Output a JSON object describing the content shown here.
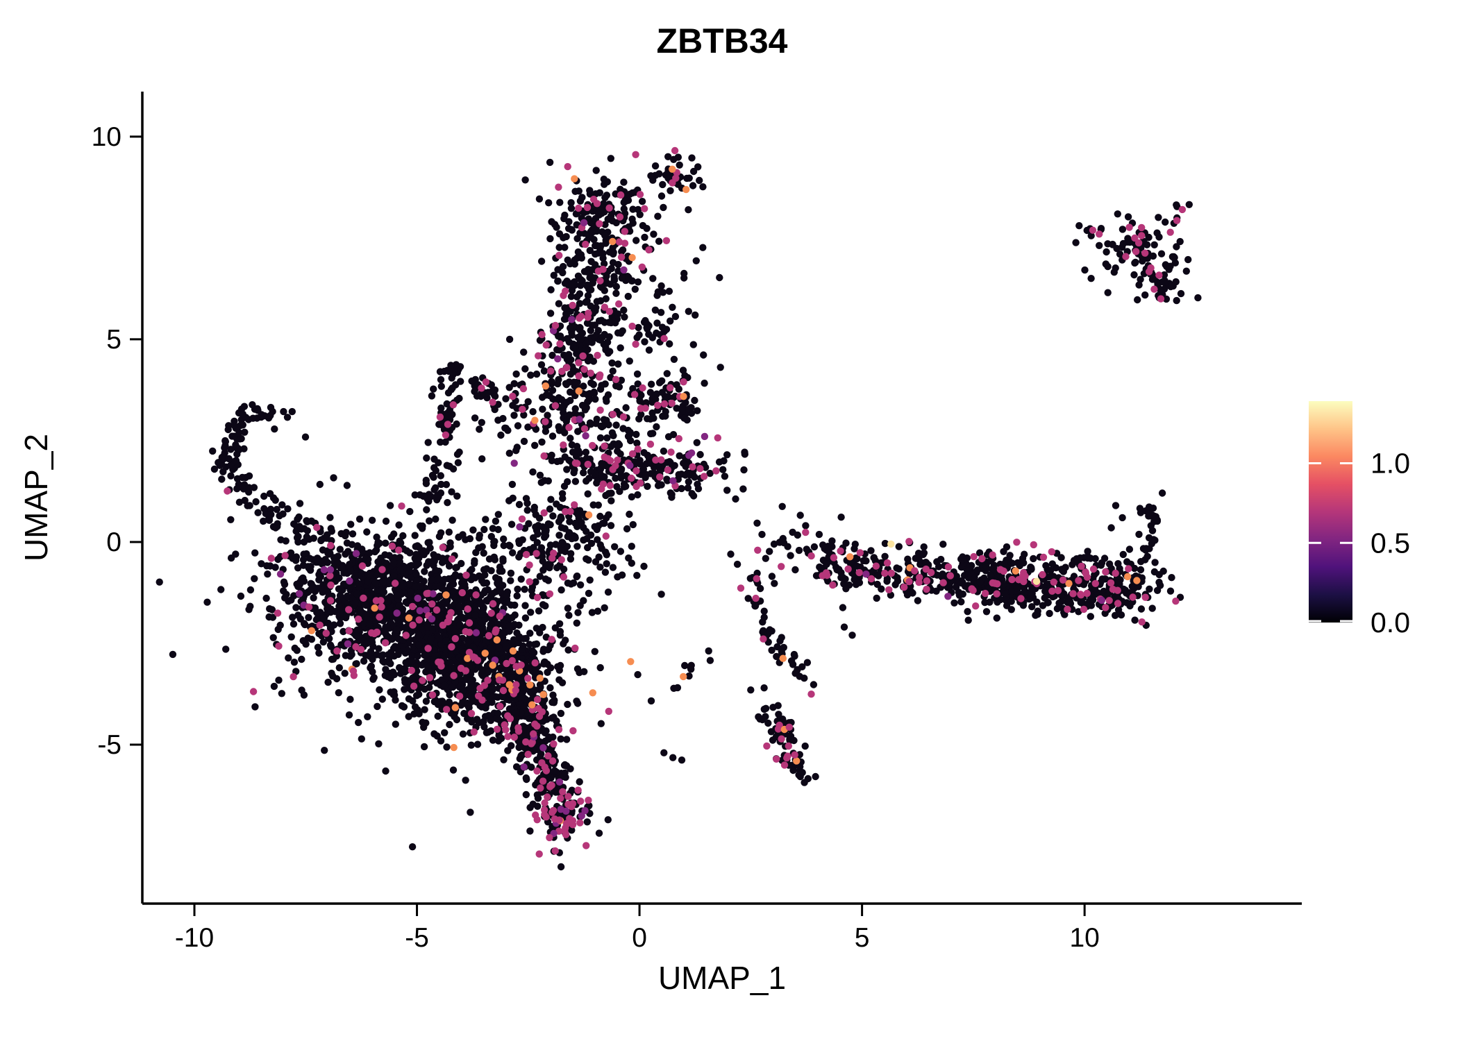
{
  "title": "ZBTB34",
  "axes": {
    "x_label": "UMAP_1",
    "y_label": "UMAP_2",
    "x_tick_values": [
      -10,
      -5,
      0,
      5,
      10
    ],
    "x_tick_labels": [
      "-10",
      "-5",
      "0",
      "5",
      "10"
    ],
    "y_tick_values": [
      10,
      5,
      0,
      -5
    ],
    "y_tick_labels": [
      "10",
      "5",
      "0",
      "-5"
    ],
    "x_range": [
      -11.17,
      14.88
    ],
    "y_range": [
      -8.92,
      11.11
    ]
  },
  "legend": {
    "tick_values": [
      1.0,
      0.5,
      0.0
    ],
    "tick_labels": [
      "1.0",
      "0.5",
      "0.0"
    ],
    "vmin": 0.0,
    "vmax": 1.39,
    "gradient_bottom_to_top": [
      "#000004",
      "#1c1044",
      "#4f127b",
      "#812581",
      "#b5367a",
      "#e55064",
      "#fb8861",
      "#fec488",
      "#fcfdbf"
    ]
  },
  "chart_data": {
    "type": "scatter",
    "title": "ZBTB34",
    "xlabel": "UMAP_1",
    "ylabel": "UMAP_2",
    "xlim": [
      -11.17,
      14.88
    ],
    "ylim": [
      -8.92,
      11.11
    ],
    "grid": false,
    "legend_position": "right",
    "point_radius_px": 5.2,
    "palette": {
      "black": "#0c0716",
      "magenta": "#b63679",
      "purple": "#822681",
      "orange": "#f68d51",
      "pale": "#fbe3a0"
    },
    "clusters": [
      {
        "name": "main-blob-core-a",
        "kind": "g",
        "n": 720,
        "c": [
          -5.2,
          -1.6
        ],
        "sd": [
          1.25,
          0.85
        ],
        "colors": {
          "m": 0.05,
          "p": 0.01,
          "o": 0.006
        }
      },
      {
        "name": "main-blob-core-b",
        "kind": "g",
        "n": 680,
        "c": [
          -4.0,
          -2.7
        ],
        "sd": [
          0.95,
          0.85
        ],
        "colors": {
          "m": 0.055,
          "p": 0.01,
          "o": 0.005
        }
      },
      {
        "name": "main-blob-left",
        "kind": "g",
        "n": 300,
        "c": [
          -6.5,
          -0.9
        ],
        "sd": [
          0.95,
          0.55
        ],
        "colors": {
          "m": 0.04,
          "p": 0.008,
          "o": 0.003
        }
      },
      {
        "name": "main-blob-lower-right",
        "kind": "g",
        "n": 280,
        "c": [
          -3.1,
          -3.7
        ],
        "sd": [
          0.65,
          0.65
        ],
        "colors": {
          "m": 0.07,
          "p": 0.01,
          "o": 0.006
        }
      },
      {
        "name": "main-blob-halo",
        "kind": "g",
        "n": 320,
        "c": [
          -4.8,
          -2.0
        ],
        "sd": [
          2.0,
          1.5
        ],
        "colors": {
          "m": 0.05,
          "p": 0.008,
          "o": 0.004
        }
      },
      {
        "name": "blob-column-bridge",
        "kind": "g",
        "n": 190,
        "c": [
          -1.7,
          0.2
        ],
        "sd": [
          0.75,
          0.75
        ],
        "colors": {
          "m": 0.06,
          "p": 0.01,
          "o": 0.005
        }
      },
      {
        "name": "column-top-clump-right",
        "kind": "g",
        "n": 40,
        "c": [
          0.75,
          8.95
        ],
        "sd": [
          0.28,
          0.3
        ],
        "colors": {
          "m": 0.06,
          "o": 0.025
        }
      },
      {
        "name": "column-top-clump-main",
        "kind": "g",
        "n": 120,
        "c": [
          -0.85,
          8.2
        ],
        "sd": [
          0.5,
          0.45
        ],
        "colors": {
          "m": 0.07,
          "o": 0.008
        }
      },
      {
        "name": "column-upper",
        "kind": "l",
        "n": 210,
        "pts": [
          [
            -1.0,
            7.5
          ],
          [
            -1.5,
            4.7
          ]
        ],
        "j": 0.5,
        "colors": {
          "m": 0.09,
          "p": 0.012,
          "o": 0.006
        }
      },
      {
        "name": "column-lower",
        "kind": "l",
        "n": 190,
        "pts": [
          [
            -1.55,
            4.5
          ],
          [
            -1.0,
            2.3
          ]
        ],
        "j": 0.55,
        "colors": {
          "m": 0.1,
          "p": 0.012,
          "o": 0.006
        }
      },
      {
        "name": "column-halo",
        "kind": "g",
        "n": 110,
        "c": [
          -0.6,
          5.0
        ],
        "sd": [
          1.1,
          2.0
        ],
        "colors": {
          "m": 0.07,
          "o": 0.009
        }
      },
      {
        "name": "clump-right-of-column-upper",
        "kind": "g",
        "n": 30,
        "c": [
          0.3,
          5.2
        ],
        "sd": [
          0.3,
          0.3
        ],
        "colors": {
          "m": 0.07
        }
      },
      {
        "name": "clump-right-of-column-mid",
        "kind": "g",
        "n": 70,
        "c": [
          0.6,
          3.55
        ],
        "sd": [
          0.45,
          0.4
        ],
        "colors": {
          "m": 0.09,
          "o": 0.01
        }
      },
      {
        "name": "dense-band-below-column",
        "kind": "g",
        "n": 210,
        "c": [
          0.0,
          1.8
        ],
        "sd": [
          0.95,
          0.33
        ],
        "colors": {
          "m": 0.12,
          "p": 0.01,
          "o": 0.005
        }
      },
      {
        "name": "scatter-above-column-right",
        "kind": "g",
        "n": 25,
        "c": [
          0.1,
          6.9
        ],
        "sd": [
          0.5,
          0.6
        ],
        "colors": {
          "m": 0.05,
          "o": 0.02
        }
      },
      {
        "name": "left-hook-arc",
        "kind": "l",
        "n": 85,
        "pts": [
          [
            -8.1,
            3.2
          ],
          [
            -8.75,
            3.1
          ],
          [
            -9.15,
            2.5
          ],
          [
            -9.3,
            1.8
          ],
          [
            -9.05,
            1.3
          ]
        ],
        "j": 0.18,
        "colors": {
          "m": 0.04
        }
      },
      {
        "name": "left-hook-chain",
        "kind": "l",
        "n": 55,
        "pts": [
          [
            -8.9,
            1.1
          ],
          [
            -8.1,
            0.6
          ],
          [
            -7.3,
            0.15
          ]
        ],
        "j": 0.22,
        "colors": {
          "m": 0.05
        }
      },
      {
        "name": "check-cluster-vertical",
        "kind": "l",
        "n": 55,
        "pts": [
          [
            -4.25,
            4.35
          ],
          [
            -4.3,
            2.7
          ]
        ],
        "j": 0.15,
        "colors": {
          "m": 0.07,
          "o": 0.012
        }
      },
      {
        "name": "check-cluster-arm",
        "kind": "l",
        "n": 28,
        "pts": [
          [
            -3.75,
            3.75
          ],
          [
            -3.2,
            3.55
          ]
        ],
        "j": 0.14,
        "colors": {
          "m": 0.07
        }
      },
      {
        "name": "check-cluster-chain",
        "kind": "l",
        "n": 40,
        "pts": [
          [
            -4.2,
            2.5
          ],
          [
            -4.6,
            1.3
          ],
          [
            -5.0,
            0.7
          ]
        ],
        "j": 0.18,
        "colors": {
          "m": 0.05
        }
      },
      {
        "name": "check-cluster-halo",
        "kind": "g",
        "n": 45,
        "c": [
          -2.7,
          3.1
        ],
        "sd": [
          0.65,
          0.5
        ],
        "colors": {
          "m": 0.06,
          "o": 0.02
        }
      },
      {
        "name": "right-band-left",
        "kind": "l",
        "n": 240,
        "pts": [
          [
            3.8,
            -0.45
          ],
          [
            7.5,
            -0.95
          ]
        ],
        "j": 0.3,
        "colors": {
          "m": 0.11,
          "p": 0.012,
          "o": 0.012
        }
      },
      {
        "name": "right-band-right",
        "kind": "l",
        "n": 460,
        "pts": [
          [
            7.4,
            -0.9
          ],
          [
            11.4,
            -1.2
          ]
        ],
        "j": 0.36,
        "colors": {
          "m": 0.13,
          "p": 0.015,
          "o": 0.012,
          "y": 0.003
        }
      },
      {
        "name": "right-band-tuft",
        "kind": "l",
        "n": 30,
        "pts": [
          [
            11.3,
            -0.4
          ],
          [
            11.55,
            0.9
          ]
        ],
        "j": 0.16,
        "colors": {
          "m": 0.08
        }
      },
      {
        "name": "right-band-lead-in",
        "kind": "g",
        "n": 22,
        "c": [
          3.5,
          0.1
        ],
        "sd": [
          0.5,
          0.45
        ],
        "colors": {
          "m": 0.08,
          "o": 0.02
        }
      },
      {
        "name": "streamer-arc",
        "kind": "l",
        "n": 55,
        "pts": [
          [
            2.6,
            -0.4
          ],
          [
            2.55,
            -1.3
          ],
          [
            2.85,
            -2.3
          ],
          [
            3.45,
            -3.05
          ],
          [
            3.9,
            -3.4
          ]
        ],
        "j": 0.13,
        "colors": {
          "m": 0.07,
          "o": 0.018
        }
      },
      {
        "name": "small-dense-drop",
        "kind": "l",
        "n": 75,
        "pts": [
          [
            2.95,
            -4.35
          ],
          [
            3.65,
            -5.75
          ]
        ],
        "j": 0.18,
        "colors": {
          "m": 0.08,
          "o": 0.013
        }
      },
      {
        "name": "bottom-tail",
        "kind": "l",
        "n": 230,
        "pts": [
          [
            -2.6,
            -3.9
          ],
          [
            -2.45,
            -4.7
          ],
          [
            -2.15,
            -5.4
          ],
          [
            -2.0,
            -6.0
          ],
          [
            -1.8,
            -6.4
          ]
        ],
        "j": 0.3,
        "colors": {
          "m": 0.13,
          "p": 0.02,
          "o": 0.009
        }
      },
      {
        "name": "bottom-tail-tip",
        "kind": "g",
        "n": 90,
        "c": [
          -1.7,
          -6.8
        ],
        "sd": [
          0.33,
          0.42
        ],
        "colors": {
          "m": 0.32,
          "p": 0.05,
          "o": 0.022
        }
      },
      {
        "name": "top-right-cluster-main",
        "kind": "g",
        "n": 85,
        "c": [
          11.25,
          7.15
        ],
        "sd": [
          0.52,
          0.42
        ],
        "colors": {
          "m": 0.11
        }
      },
      {
        "name": "top-right-cluster-tip",
        "kind": "g",
        "n": 28,
        "c": [
          11.75,
          6.4
        ],
        "sd": [
          0.28,
          0.3
        ],
        "colors": {
          "m": 0.15
        }
      },
      {
        "name": "top-right-cluster-left",
        "kind": "g",
        "n": 8,
        "c": [
          10.15,
          7.65
        ],
        "sd": [
          0.16,
          0.12
        ],
        "colors": {
          "m": 0.13
        }
      },
      {
        "name": "top-right-chain",
        "kind": "l",
        "n": 6,
        "pts": [
          [
            12.1,
            8.15
          ],
          [
            12.5,
            8.45
          ]
        ],
        "j": 0.1,
        "colors": {
          "m": 0.3
        }
      },
      {
        "name": "sparse-diagonal",
        "kind": "l",
        "n": 10,
        "pts": [
          [
            1.75,
            -2.55
          ],
          [
            0.35,
            -3.85
          ]
        ],
        "j": 0.12,
        "colors": {
          "m": 0.1,
          "o": 0.05
        }
      }
    ],
    "singles": [
      [
        -5.6,
        0.9,
        "k"
      ],
      [
        -2.35,
        3.0,
        "o"
      ],
      [
        0.55,
        -5.2,
        "k"
      ],
      [
        0.75,
        -5.32,
        "k"
      ],
      [
        0.95,
        -5.38,
        "k"
      ],
      [
        2.5,
        -3.65,
        "k"
      ],
      [
        2.8,
        -3.6,
        "k"
      ],
      [
        5.65,
        -0.05,
        "y"
      ],
      [
        -0.2,
        -2.95,
        "o"
      ],
      [
        -1.05,
        -3.72,
        "o"
      ],
      [
        2.2,
        -0.55,
        "k"
      ],
      [
        2.05,
        -0.3,
        "k"
      ],
      [
        10.7,
        0.9,
        "k"
      ],
      [
        10.85,
        0.6,
        "k"
      ],
      [
        10.6,
        0.35,
        "k"
      ],
      [
        0.3,
        6.5,
        "k"
      ],
      [
        1.25,
        5.6,
        "k"
      ],
      [
        4.6,
        -2.1,
        "k"
      ],
      [
        4.78,
        -2.3,
        "k"
      ],
      [
        0.1,
        -0.6,
        "k"
      ]
    ]
  }
}
